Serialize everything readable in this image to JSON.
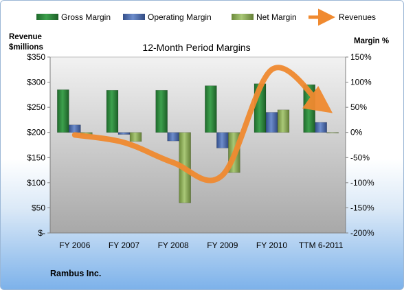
{
  "chart_data": {
    "type": "bar+line",
    "title": "12-Month Period Margins",
    "company": "Rambus Inc.",
    "categories": [
      "FY 2006",
      "FY 2007",
      "FY 2008",
      "FY 2009",
      "FY 2010",
      "TTM 6-2011"
    ],
    "left_axis": {
      "label_line1": "Revenue",
      "label_line2": "$millions",
      "ticks": [
        "$-",
        "$50",
        "$100",
        "$150",
        "$200",
        "$250",
        "$300",
        "$350"
      ],
      "ylim": [
        0,
        350
      ]
    },
    "right_axis": {
      "label": "Margin %",
      "ticks": [
        "-200%",
        "-150%",
        "-100%",
        "-50%",
        "0%",
        "50%",
        "100%",
        "150%"
      ],
      "ylim": [
        -200,
        150
      ]
    },
    "series": [
      {
        "name": "Gross Margin",
        "type": "bar",
        "axis": "right",
        "color": "#2e8b3e",
        "values": [
          85,
          84,
          84,
          93,
          97,
          95
        ]
      },
      {
        "name": "Operating Margin",
        "type": "bar",
        "axis": "right",
        "color": "#4f6fb0",
        "values": [
          15,
          -4,
          -17,
          -31,
          40,
          20
        ]
      },
      {
        "name": "Net Margin",
        "type": "bar",
        "axis": "right",
        "color": "#8fb35a",
        "values": [
          -5,
          -18,
          -140,
          -80,
          45,
          0
        ]
      },
      {
        "name": "Revenues",
        "type": "line",
        "axis": "left",
        "color": "#f08a30",
        "values": [
          195,
          180,
          140,
          115,
          325,
          255
        ]
      }
    ],
    "legend_position": "top",
    "grid": false
  }
}
